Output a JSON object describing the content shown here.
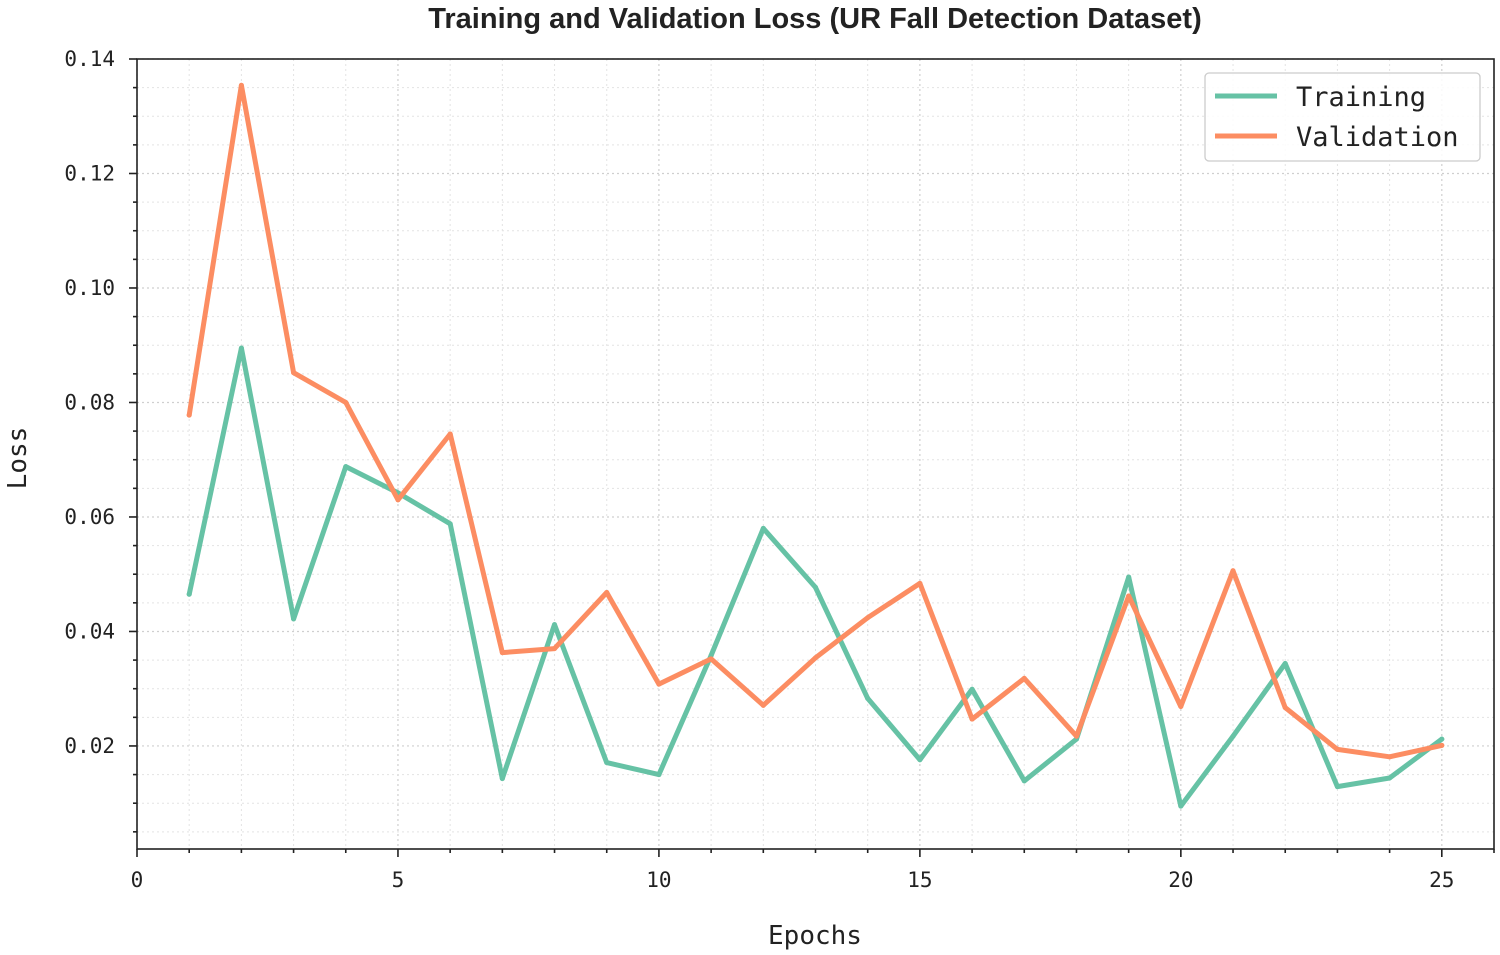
{
  "chart_data": {
    "type": "line",
    "title": "Training and Validation Loss (UR Fall Detection Dataset)",
    "xlabel": "Epochs",
    "ylabel": "Loss",
    "xlim": [
      0,
      26
    ],
    "ylim": [
      0.002,
      0.14
    ],
    "x_ticks": [
      0,
      5,
      10,
      15,
      20,
      25
    ],
    "x_tick_labels": [
      "0",
      "5",
      "10",
      "15",
      "20",
      "25"
    ],
    "y_ticks": [
      0.02,
      0.04,
      0.06,
      0.08,
      0.1,
      0.12,
      0.14
    ],
    "y_tick_labels": [
      "0.02",
      "0.04",
      "0.06",
      "0.08",
      "0.10",
      "0.12",
      "0.14"
    ],
    "grid": true,
    "legend_position": "top-right",
    "x": [
      1,
      2,
      3,
      4,
      5,
      6,
      7,
      8,
      9,
      10,
      11,
      12,
      13,
      14,
      15,
      16,
      17,
      18,
      19,
      20,
      21,
      22,
      23,
      24,
      25
    ],
    "series": [
      {
        "name": "Training",
        "color": "#66c2a5",
        "values": [
          0.0465,
          0.0895,
          0.0422,
          0.0688,
          0.0642,
          0.0588,
          0.0143,
          0.0412,
          0.0171,
          0.015,
          0.0358,
          0.058,
          0.0477,
          0.0283,
          0.0176,
          0.0299,
          0.0139,
          0.0212,
          0.0495,
          0.0095,
          0.0217,
          0.0344,
          0.0129,
          0.0144,
          0.0212
        ]
      },
      {
        "name": "Validation",
        "color": "#fc8d62",
        "values": [
          0.0778,
          0.1354,
          0.0852,
          0.08,
          0.063,
          0.0745,
          0.0363,
          0.037,
          0.0468,
          0.0308,
          0.0352,
          0.0271,
          0.0354,
          0.0424,
          0.0484,
          0.0247,
          0.0318,
          0.0217,
          0.0462,
          0.0269,
          0.0506,
          0.0267,
          0.0194,
          0.0181,
          0.0201
        ]
      }
    ]
  }
}
